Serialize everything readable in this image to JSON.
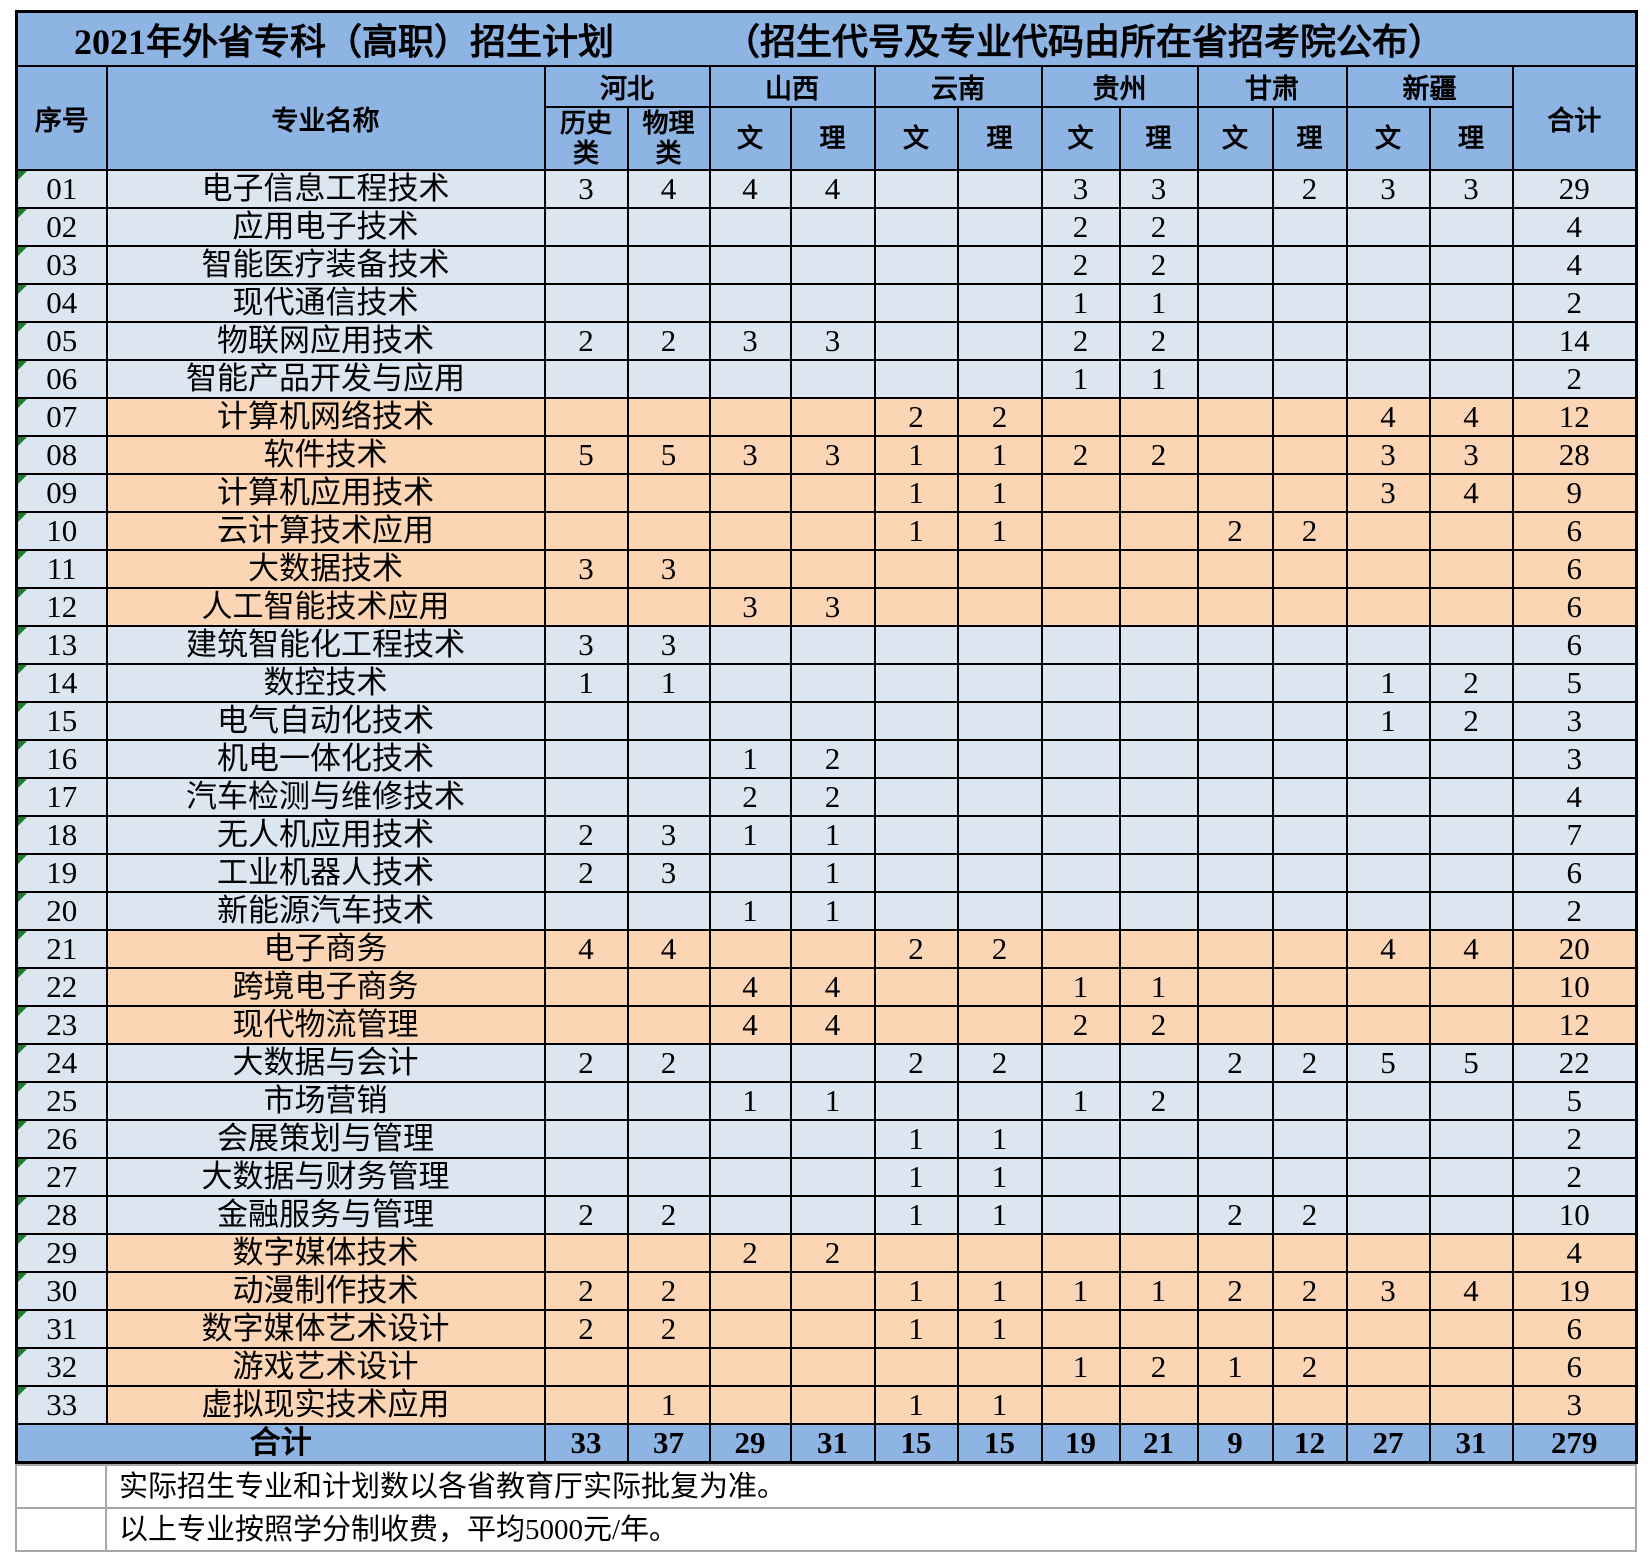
{
  "title": {
    "main": "2021年外省专科（高职）招生计划",
    "note": "（招生代号及专业代码由所在省招考院公布）"
  },
  "colors": {
    "header_blue": "#8db4e2",
    "row_blue": "#dce6f1",
    "row_orange": "#fcd5b4",
    "flag_green": "#1e7a2e"
  },
  "table": {
    "col_sn": "序号",
    "col_major": "专业名称",
    "col_total": "合计",
    "provinces": [
      {
        "name": "河北",
        "subs": [
          "历史类",
          "物理类"
        ]
      },
      {
        "name": "山西",
        "subs": [
          "文",
          "理"
        ]
      },
      {
        "name": "云南",
        "subs": [
          "文",
          "理"
        ]
      },
      {
        "name": "贵州",
        "subs": [
          "文",
          "理"
        ]
      },
      {
        "name": "甘肃",
        "subs": [
          "文",
          "理"
        ]
      },
      {
        "name": "新疆",
        "subs": [
          "文",
          "理"
        ]
      }
    ],
    "rows": [
      {
        "sn": "01",
        "major": "电子信息工程技术",
        "values": [
          "3",
          "4",
          "4",
          "4",
          "",
          "",
          "3",
          "3",
          "",
          "2",
          "3",
          "3"
        ],
        "total": "29",
        "highlight": false
      },
      {
        "sn": "02",
        "major": "应用电子技术",
        "values": [
          "",
          "",
          "",
          "",
          "",
          "",
          "2",
          "2",
          "",
          "",
          "",
          ""
        ],
        "total": "4",
        "highlight": false
      },
      {
        "sn": "03",
        "major": "智能医疗装备技术",
        "values": [
          "",
          "",
          "",
          "",
          "",
          "",
          "2",
          "2",
          "",
          "",
          "",
          ""
        ],
        "total": "4",
        "highlight": false
      },
      {
        "sn": "04",
        "major": "现代通信技术",
        "values": [
          "",
          "",
          "",
          "",
          "",
          "",
          "1",
          "1",
          "",
          "",
          "",
          ""
        ],
        "total": "2",
        "highlight": false
      },
      {
        "sn": "05",
        "major": "物联网应用技术",
        "values": [
          "2",
          "2",
          "3",
          "3",
          "",
          "",
          "2",
          "2",
          "",
          "",
          "",
          ""
        ],
        "total": "14",
        "highlight": false
      },
      {
        "sn": "06",
        "major": "智能产品开发与应用",
        "values": [
          "",
          "",
          "",
          "",
          "",
          "",
          "1",
          "1",
          "",
          "",
          "",
          ""
        ],
        "total": "2",
        "highlight": false
      },
      {
        "sn": "07",
        "major": "计算机网络技术",
        "values": [
          "",
          "",
          "",
          "",
          "2",
          "2",
          "",
          "",
          "",
          "",
          "4",
          "4"
        ],
        "total": "12",
        "highlight": true
      },
      {
        "sn": "08",
        "major": "软件技术",
        "values": [
          "5",
          "5",
          "3",
          "3",
          "1",
          "1",
          "2",
          "2",
          "",
          "",
          "3",
          "3"
        ],
        "total": "28",
        "highlight": true
      },
      {
        "sn": "09",
        "major": "计算机应用技术",
        "values": [
          "",
          "",
          "",
          "",
          "1",
          "1",
          "",
          "",
          "",
          "",
          "3",
          "4"
        ],
        "total": "9",
        "highlight": true
      },
      {
        "sn": "10",
        "major": "云计算技术应用",
        "values": [
          "",
          "",
          "",
          "",
          "1",
          "1",
          "",
          "",
          "2",
          "2",
          "",
          ""
        ],
        "total": "6",
        "highlight": true
      },
      {
        "sn": "11",
        "major": "大数据技术",
        "values": [
          "3",
          "3",
          "",
          "",
          "",
          "",
          "",
          "",
          "",
          "",
          "",
          ""
        ],
        "total": "6",
        "highlight": true
      },
      {
        "sn": "12",
        "major": "人工智能技术应用",
        "values": [
          "",
          "",
          "3",
          "3",
          "",
          "",
          "",
          "",
          "",
          "",
          "",
          ""
        ],
        "total": "6",
        "highlight": true
      },
      {
        "sn": "13",
        "major": "建筑智能化工程技术",
        "values": [
          "3",
          "3",
          "",
          "",
          "",
          "",
          "",
          "",
          "",
          "",
          "",
          ""
        ],
        "total": "6",
        "highlight": false
      },
      {
        "sn": "14",
        "major": "数控技术",
        "values": [
          "1",
          "1",
          "",
          "",
          "",
          "",
          "",
          "",
          "",
          "",
          "1",
          "2"
        ],
        "total": "5",
        "highlight": false
      },
      {
        "sn": "15",
        "major": "电气自动化技术",
        "values": [
          "",
          "",
          "",
          "",
          "",
          "",
          "",
          "",
          "",
          "",
          "1",
          "2"
        ],
        "total": "3",
        "highlight": false
      },
      {
        "sn": "16",
        "major": "机电一体化技术",
        "values": [
          "",
          "",
          "1",
          "2",
          "",
          "",
          "",
          "",
          "",
          "",
          "",
          ""
        ],
        "total": "3",
        "highlight": false
      },
      {
        "sn": "17",
        "major": "汽车检测与维修技术",
        "values": [
          "",
          "",
          "2",
          "2",
          "",
          "",
          "",
          "",
          "",
          "",
          "",
          ""
        ],
        "total": "4",
        "highlight": false
      },
      {
        "sn": "18",
        "major": "无人机应用技术",
        "values": [
          "2",
          "3",
          "1",
          "1",
          "",
          "",
          "",
          "",
          "",
          "",
          "",
          ""
        ],
        "total": "7",
        "highlight": false
      },
      {
        "sn": "19",
        "major": "工业机器人技术",
        "values": [
          "2",
          "3",
          "",
          "1",
          "",
          "",
          "",
          "",
          "",
          "",
          "",
          ""
        ],
        "total": "6",
        "highlight": false
      },
      {
        "sn": "20",
        "major": "新能源汽车技术",
        "values": [
          "",
          "",
          "1",
          "1",
          "",
          "",
          "",
          "",
          "",
          "",
          "",
          ""
        ],
        "total": "2",
        "highlight": false
      },
      {
        "sn": "21",
        "major": "电子商务",
        "values": [
          "4",
          "4",
          "",
          "",
          "2",
          "2",
          "",
          "",
          "",
          "",
          "4",
          "4"
        ],
        "total": "20",
        "highlight": true
      },
      {
        "sn": "22",
        "major": "跨境电子商务",
        "values": [
          "",
          "",
          "4",
          "4",
          "",
          "",
          "1",
          "1",
          "",
          "",
          "",
          ""
        ],
        "total": "10",
        "highlight": true
      },
      {
        "sn": "23",
        "major": "现代物流管理",
        "values": [
          "",
          "",
          "4",
          "4",
          "",
          "",
          "2",
          "2",
          "",
          "",
          "",
          ""
        ],
        "total": "12",
        "highlight": true
      },
      {
        "sn": "24",
        "major": "大数据与会计",
        "values": [
          "2",
          "2",
          "",
          "",
          "2",
          "2",
          "",
          "",
          "2",
          "2",
          "5",
          "5"
        ],
        "total": "22",
        "highlight": false
      },
      {
        "sn": "25",
        "major": "市场营销",
        "values": [
          "",
          "",
          "1",
          "1",
          "",
          "",
          "1",
          "2",
          "",
          "",
          "",
          ""
        ],
        "total": "5",
        "highlight": false
      },
      {
        "sn": "26",
        "major": "会展策划与管理",
        "values": [
          "",
          "",
          "",
          "",
          "1",
          "1",
          "",
          "",
          "",
          "",
          "",
          ""
        ],
        "total": "2",
        "highlight": false
      },
      {
        "sn": "27",
        "major": "大数据与财务管理",
        "values": [
          "",
          "",
          "",
          "",
          "1",
          "1",
          "",
          "",
          "",
          "",
          "",
          ""
        ],
        "total": "2",
        "highlight": false
      },
      {
        "sn": "28",
        "major": "金融服务与管理",
        "values": [
          "2",
          "2",
          "",
          "",
          "1",
          "1",
          "",
          "",
          "2",
          "2",
          "",
          ""
        ],
        "total": "10",
        "highlight": false
      },
      {
        "sn": "29",
        "major": "数字媒体技术",
        "values": [
          "",
          "",
          "2",
          "2",
          "",
          "",
          "",
          "",
          "",
          "",
          "",
          ""
        ],
        "total": "4",
        "highlight": true
      },
      {
        "sn": "30",
        "major": "动漫制作技术",
        "values": [
          "2",
          "2",
          "",
          "",
          "1",
          "1",
          "1",
          "1",
          "2",
          "2",
          "3",
          "4"
        ],
        "total": "19",
        "highlight": true
      },
      {
        "sn": "31",
        "major": "数字媒体艺术设计",
        "values": [
          "2",
          "2",
          "",
          "",
          "1",
          "1",
          "",
          "",
          "",
          "",
          "",
          ""
        ],
        "total": "6",
        "highlight": true
      },
      {
        "sn": "32",
        "major": "游戏艺术设计",
        "values": [
          "",
          "",
          "",
          "",
          "",
          "",
          "1",
          "2",
          "1",
          "2",
          "",
          ""
        ],
        "total": "6",
        "highlight": true
      },
      {
        "sn": "33",
        "major": "虚拟现实技术应用",
        "values": [
          "",
          "1",
          "",
          "",
          "1",
          "1",
          "",
          "",
          "",
          "",
          "",
          ""
        ],
        "total": "3",
        "highlight": true
      }
    ],
    "total_row": {
      "label": "合计",
      "values": [
        "33",
        "37",
        "29",
        "31",
        "15",
        "15",
        "19",
        "21",
        "9",
        "12",
        "27",
        "31"
      ],
      "total": "279"
    }
  },
  "notes": [
    "实际招生专业和计划数以各省教育厅实际批复为准。",
    "以上专业按照学分制收费，平均5000元/年。"
  ]
}
